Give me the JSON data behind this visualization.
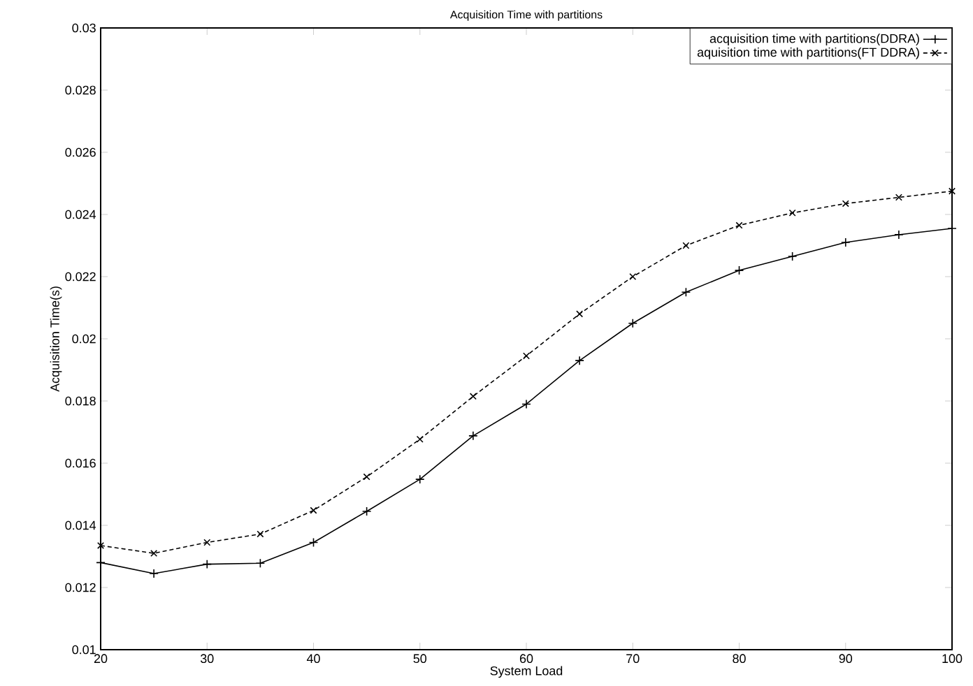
{
  "chart_data": {
    "type": "line",
    "title": "Acquisition Time with partitions",
    "xlabel": "System Load",
    "ylabel": "Acquisition Time(s)",
    "x": [
      20,
      25,
      30,
      35,
      40,
      45,
      50,
      55,
      60,
      65,
      70,
      75,
      80,
      85,
      90,
      95,
      100
    ],
    "series": [
      {
        "name": "acquisition time with partitions(DDRA)",
        "color": "#000000",
        "marker": "plus",
        "line_style": "solid",
        "values": [
          0.0128,
          0.01245,
          0.01275,
          0.01278,
          0.01345,
          0.01445,
          0.01548,
          0.01688,
          0.0179,
          0.0193,
          0.0205,
          0.0215,
          0.0222,
          0.02265,
          0.0231,
          0.02335,
          0.02355
        ]
      },
      {
        "name": "aquisition time with partitions(FT DDRA)",
        "color": "#000000",
        "marker": "cross",
        "line_style": "dashed",
        "values": [
          0.01335,
          0.0131,
          0.01345,
          0.01372,
          0.01448,
          0.01556,
          0.01677,
          0.01815,
          0.01945,
          0.0208,
          0.022,
          0.023,
          0.02365,
          0.02405,
          0.02435,
          0.02455,
          0.02475
        ]
      }
    ],
    "xlim": [
      20,
      100
    ],
    "ylim": [
      0.01,
      0.03
    ],
    "xticks": [
      20,
      30,
      40,
      50,
      60,
      70,
      80,
      90,
      100
    ],
    "yticks": [
      0.01,
      0.012,
      0.014,
      0.016,
      0.018,
      0.02,
      0.022,
      0.024,
      0.026,
      0.028,
      0.03
    ],
    "grid": false,
    "legend": "top right"
  }
}
